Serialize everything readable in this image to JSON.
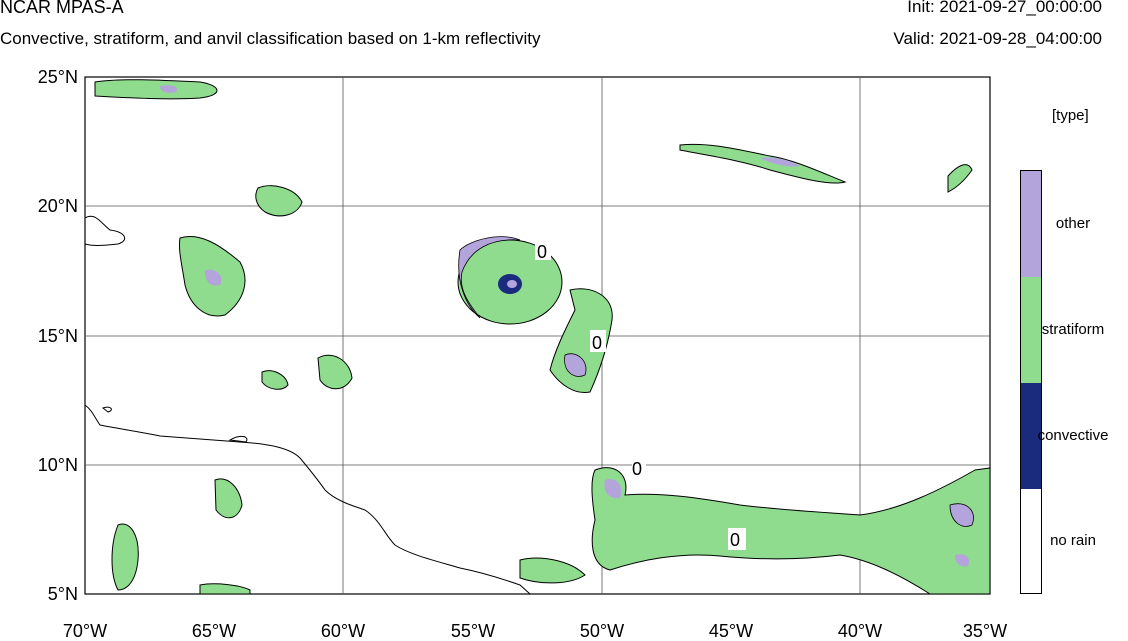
{
  "header": {
    "model": "NCAR MPAS-A",
    "subtitle": "Convective, stratiform, and anvil classification based on 1-km reflectivity",
    "init": "Init: 2021-09-27_00:00:00",
    "valid": "Valid: 2021-09-28_04:00:00"
  },
  "axes": {
    "lat_ticks": [
      "25°N",
      "20°N",
      "15°N",
      "10°N",
      "5°N"
    ],
    "lon_ticks": [
      "70°W",
      "65°W",
      "60°W",
      "55°W",
      "50°W",
      "45°W",
      "40°W",
      "35°W"
    ],
    "lon_range": [
      -70,
      -35
    ],
    "lat_range": [
      5,
      25
    ]
  },
  "legend": {
    "title": "[type]",
    "items": [
      {
        "label": "other",
        "color": "#b3a4dc"
      },
      {
        "label": "stratiform",
        "color": "#8fdc8f"
      },
      {
        "label": "convective",
        "color": "#1a2a7c"
      },
      {
        "label": "no rain",
        "color": "#ffffff"
      }
    ]
  },
  "map_annotations": [
    "0",
    "0",
    "0",
    "0"
  ]
}
